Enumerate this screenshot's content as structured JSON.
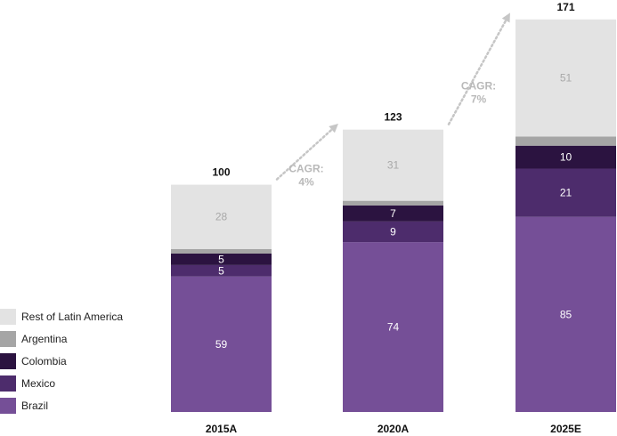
{
  "chart_data": {
    "type": "bar",
    "stacked": true,
    "categories": [
      "2015A",
      "2020A",
      "2025E"
    ],
    "totals": [
      "100",
      "123",
      "171"
    ],
    "series": [
      {
        "name": "Brazil",
        "values": [
          59,
          74,
          85
        ],
        "color": "#754f97",
        "label_color": "#ffffff",
        "show_labels": true
      },
      {
        "name": "Mexico",
        "values": [
          5,
          9,
          21
        ],
        "color": "#4d2c6c",
        "label_color": "#ffffff",
        "show_labels": true
      },
      {
        "name": "Colombia",
        "values": [
          5,
          7,
          10
        ],
        "color": "#2b1340",
        "label_color": "#ffffff",
        "show_labels": true
      },
      {
        "name": "Argentina",
        "values": [
          2,
          2,
          4
        ],
        "color": "#a5a5a5",
        "label_color": "#ffffff",
        "show_labels": false
      },
      {
        "name": "Rest of Latin America",
        "values": [
          28,
          31,
          51
        ],
        "color": "#e3e3e3",
        "label_color": "#a8a8a8",
        "show_labels": true
      }
    ],
    "annotations": [
      {
        "line1": "CAGR:",
        "line2": "4%",
        "between": [
          "2015A",
          "2020A"
        ]
      },
      {
        "line1": "CAGR:",
        "line2": "7%",
        "between": [
          "2020A",
          "2025E"
        ]
      }
    ],
    "legend_position": "bottom-left",
    "ylim": [
      0,
      171
    ],
    "grid": false
  },
  "legend": [
    {
      "label": "Rest of Latin America",
      "color": "#e3e3e3"
    },
    {
      "label": "Argentina",
      "color": "#a5a5a5"
    },
    {
      "label": "Colombia",
      "color": "#2b1340"
    },
    {
      "label": "Mexico",
      "color": "#4d2c6c"
    },
    {
      "label": "Brazil",
      "color": "#754f97"
    }
  ]
}
